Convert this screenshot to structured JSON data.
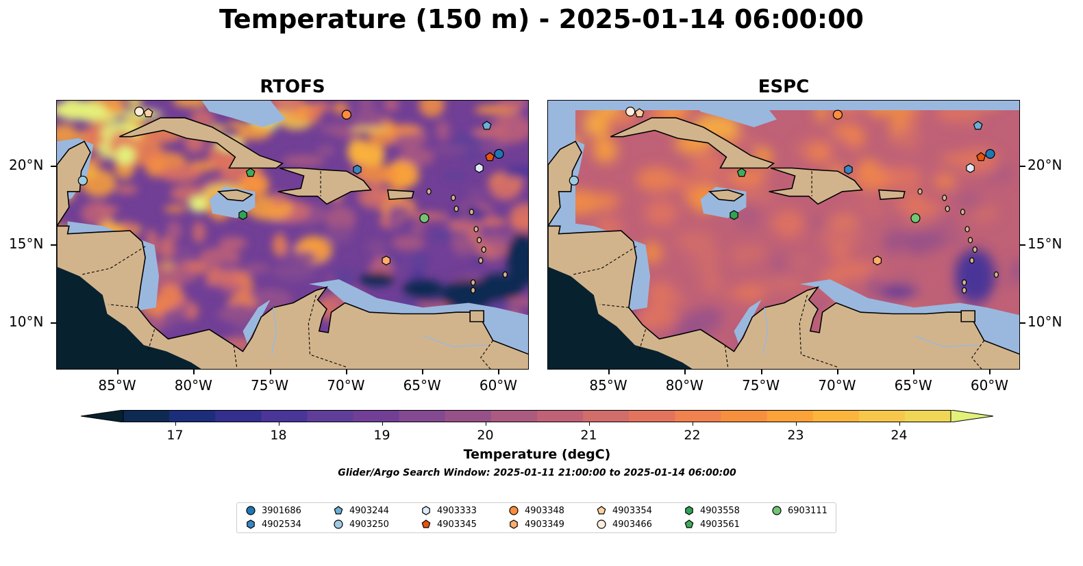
{
  "title": "Temperature (150 m) - 2025-01-14 06:00:00",
  "panels": [
    {
      "title": "RTOFS",
      "model": "rtofs"
    },
    {
      "title": "ESPC",
      "model": "espc"
    }
  ],
  "axes": {
    "lon_ticks": [
      "85°W",
      "80°W",
      "75°W",
      "70°W",
      "65°W",
      "60°W"
    ],
    "lat_ticks": [
      "20°N",
      "15°N",
      "10°N"
    ],
    "lon_range": [
      -89,
      -58
    ],
    "lat_range": [
      7,
      24.2
    ]
  },
  "colorbar": {
    "label": "Temperature (degC)",
    "ticks": [
      "17",
      "18",
      "19",
      "20",
      "21",
      "22",
      "23",
      "24"
    ],
    "range": [
      16.5,
      24.5
    ],
    "extend": "both",
    "colormap": "thermal",
    "colors": [
      "#06202e",
      "#0e2a52",
      "#1c2e7a",
      "#332f8e",
      "#4a3598",
      "#5e3e99",
      "#713f96",
      "#844a91",
      "#975189",
      "#ab5b80",
      "#bf6177",
      "#d16d6a",
      "#e2745d",
      "#ef824e",
      "#f6903e",
      "#fba238",
      "#fbb43c",
      "#f6c74a",
      "#f0d656",
      "#e3f07a"
    ]
  },
  "window_text": "Glider/Argo Search Window: 2025-01-11 21:00:00 to 2025-01-14 06:00:00",
  "floats": [
    {
      "id": "3901686",
      "marker": "circle",
      "color": "#1f77b4",
      "lon": -60.0,
      "lat": 20.8
    },
    {
      "id": "4902534",
      "marker": "hexagon",
      "color": "#3a86c3",
      "lon": -69.3,
      "lat": 19.8
    },
    {
      "id": "4903244",
      "marker": "pentagon",
      "color": "#6baed6",
      "lon": -60.8,
      "lat": 22.6
    },
    {
      "id": "4903250",
      "marker": "circle",
      "color": "#9ecae1",
      "lon": -87.3,
      "lat": 19.1
    },
    {
      "id": "4903333",
      "marker": "hexagon",
      "color": "#deebf7",
      "lon": -61.3,
      "lat": 19.9
    },
    {
      "id": "4903345",
      "marker": "pentagon",
      "color": "#e6550d",
      "lon": -60.6,
      "lat": 20.6
    },
    {
      "id": "4903348",
      "marker": "circle",
      "color": "#fd8d3c",
      "lon": -70.0,
      "lat": 23.3
    },
    {
      "id": "4903349",
      "marker": "hexagon",
      "color": "#fdae6b",
      "lon": -67.4,
      "lat": 14.0
    },
    {
      "id": "4903354",
      "marker": "pentagon",
      "color": "#fdd0a2",
      "lon": -83.0,
      "lat": 23.4
    },
    {
      "id": "4903466",
      "marker": "circle",
      "color": "#feedde",
      "lon": -83.6,
      "lat": 23.5
    },
    {
      "id": "4903558",
      "marker": "hexagon",
      "color": "#31a354",
      "lon": -76.8,
      "lat": 16.9
    },
    {
      "id": "4903561",
      "marker": "pentagon",
      "color": "#41ab5d",
      "lon": -76.3,
      "lat": 19.6
    },
    {
      "id": "6903111",
      "marker": "circle",
      "color": "#74c476",
      "lon": -64.9,
      "lat": 16.7
    }
  ],
  "legend_columns": [
    [
      "3901686",
      "4902534"
    ],
    [
      "4903244",
      "4903250"
    ],
    [
      "4903333",
      "4903345"
    ],
    [
      "4903348",
      "4903349"
    ],
    [
      "4903354",
      "4903466"
    ],
    [
      "4903558",
      "4903561"
    ],
    [
      "6903111"
    ]
  ],
  "map_colors": {
    "land": "#d2b48c",
    "shelf": "#9ab8de",
    "deep": "#08212f"
  }
}
